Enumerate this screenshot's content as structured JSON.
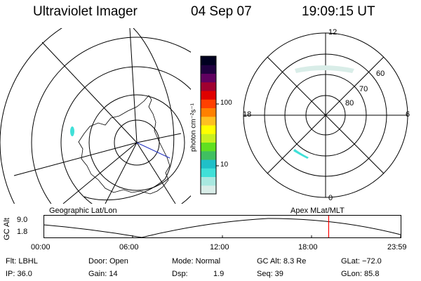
{
  "header": {
    "title": "Ultraviolet Imager",
    "date": "04 Sep 07",
    "time": "19:09:15 UT"
  },
  "colorbar": {
    "unit_label": "photon cm⁻²s⁻¹",
    "tick_labels": [
      "100",
      "10"
    ],
    "colors": [
      "#d9ede8",
      "#a8e8e0",
      "#40e0d8",
      "#20c0c8",
      "#40c060",
      "#60e020",
      "#c8f020",
      "#ffff00",
      "#ffc020",
      "#ff8000",
      "#ff4000",
      "#e00000",
      "#a00030",
      "#600060",
      "#200040",
      "#000020"
    ]
  },
  "polar_plot": {
    "lat_labels": [
      "60",
      "70",
      "80"
    ],
    "mlt_labels": [
      "12",
      "18",
      "6",
      "0"
    ]
  },
  "altitude_panel": {
    "left_title": "Geographic Lat/Lon",
    "right_title": "Apex MLat/MLT",
    "ylabel": "GC Alt",
    "y_ticks": [
      "9.0",
      "1.8"
    ],
    "x_ticks": [
      "00:00",
      "06:00",
      "12:00",
      "18:00",
      "23:59"
    ],
    "current_time_marker": "19:09"
  },
  "info": {
    "row1": {
      "flt": "Flt: LBHL",
      "door": "Door: Open",
      "mode": "Mode: Normal",
      "gcalt": "GC Alt: 8.3 Re",
      "glat": "GLat: −72.0"
    },
    "row2": {
      "ip": "IP: 36.0",
      "gain": "Gain: 14",
      "dsp_label": "Dsp:",
      "dsp_value": "1.9",
      "seq": "Seq: 39",
      "glon": "GLon:  85.8"
    }
  },
  "colors": {
    "aurora_patch": "#b8e8e4",
    "marker": "#ff0000"
  }
}
